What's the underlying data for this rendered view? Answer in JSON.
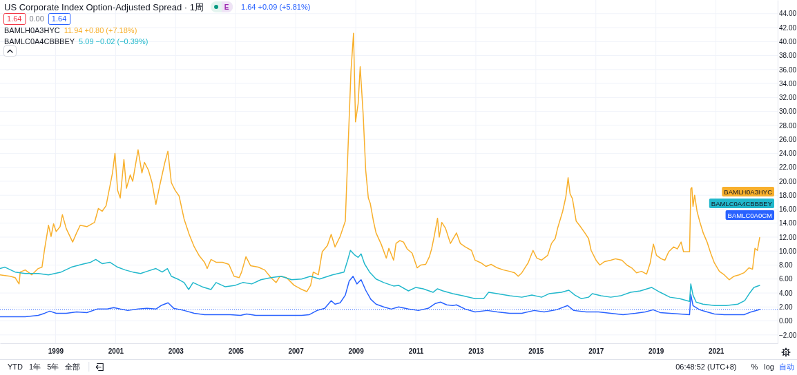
{
  "chart_data": {
    "type": "line",
    "title": "US Corporate Index Option-Adjusted Spread · 1周",
    "xlim": [
      "1997-02-24",
      "2023-01-22"
    ],
    "xticks": [
      "1999",
      "2001",
      "2003",
      "2005",
      "2007",
      "2009",
      "2011",
      "2013",
      "2015",
      "2017",
      "2019",
      "2021"
    ],
    "ylim": [
      -3.2,
      45.95
    ],
    "yticks": [
      {
        "value": -2,
        "label": "−2.00"
      },
      {
        "value": 0,
        "label": "0.00"
      },
      {
        "value": 2,
        "label": "2.00"
      },
      {
        "value": 4,
        "label": "4.00"
      },
      {
        "value": 6,
        "label": "6.00"
      },
      {
        "value": 8,
        "label": "8.00"
      },
      {
        "value": 10,
        "label": "10.00"
      },
      {
        "value": 12,
        "label": "12.00"
      },
      {
        "value": 14,
        "label": "14.00"
      },
      {
        "value": 16,
        "label": "16.00"
      },
      {
        "value": 18,
        "label": "18.00"
      },
      {
        "value": 20,
        "label": "20.00"
      },
      {
        "value": 22,
        "label": "22.00"
      },
      {
        "value": 24,
        "label": "24.00"
      },
      {
        "value": 26,
        "label": "26.00"
      },
      {
        "value": 28,
        "label": "28.00"
      },
      {
        "value": 30,
        "label": "30.00"
      },
      {
        "value": 32,
        "label": "32.00"
      },
      {
        "value": 34,
        "label": "34.00"
      },
      {
        "value": 36,
        "label": "36.00"
      },
      {
        "value": 38,
        "label": "38.00"
      },
      {
        "value": 40,
        "label": "40.00"
      },
      {
        "value": 42,
        "label": "42.00"
      },
      {
        "value": 44,
        "label": "44.00"
      }
    ],
    "grid": true,
    "legend": "right",
    "ref_lines": [
      {
        "axis": "y",
        "value": 1.64,
        "color": "#2962ff",
        "line_style": "dotted"
      }
    ],
    "series": [
      {
        "name": "BAMLC0A0CM",
        "color": "#2962ff",
        "x": [
          "1997-02-24",
          "1997-12-28",
          "1998-06-04",
          "1998-08-21",
          "1998-10-22",
          "1999-01-09",
          "1999-05-12",
          "1999-09-14",
          "2000-01-17",
          "2000-05-20",
          "2000-09-22",
          "2000-12-09",
          "2001-02-26",
          "2001-05-28",
          "2001-10-01",
          "2002-01-18",
          "2002-05-06",
          "2002-07-07",
          "2002-10-01",
          "2002-12-10",
          "2003-04-14",
          "2003-08-16",
          "2003-12-19",
          "2004-05-22",
          "2004-10-26",
          "2005-02-28",
          "2005-05-15",
          "2005-09-03",
          "2006-03-06",
          "2006-09-11",
          "2007-03-15",
          "2007-06-17",
          "2007-09-19",
          "2007-12-21",
          "2008-03-08",
          "2008-04-24",
          "2008-06-25",
          "2008-08-27",
          "2008-10-13",
          "2008-11-29",
          "2009-01-15",
          "2009-03-07",
          "2009-05-02",
          "2009-07-03",
          "2009-09-05",
          "2009-12-07",
          "2010-03-09",
          "2010-06-06",
          "2010-10-04",
          "2011-02-02",
          "2011-06-01",
          "2011-08-29",
          "2011-10-29",
          "2012-01-13",
          "2012-03-27",
          "2012-05-11",
          "2012-08-25",
          "2012-12-23",
          "2013-05-21",
          "2013-09-19",
          "2014-02-17",
          "2014-07-15",
          "2014-12-13",
          "2015-04-12",
          "2015-09-10",
          "2016-01-23",
          "2016-04-07",
          "2016-09-05",
          "2017-02-02",
          "2017-07-01",
          "2017-11-28",
          "2018-04-26",
          "2018-08-25",
          "2018-11-29",
          "2019-02-22",
          "2019-06-21",
          "2019-10-19",
          "2020-02-15",
          "2020-03-01",
          "2020-03-28",
          "2020-06-16",
          "2020-09-15",
          "2020-12-13",
          "2021-04-12",
          "2021-08-10",
          "2021-12-09",
          "2022-03-07",
          "2022-06-17"
        ],
        "values": [
          0.6,
          0.6,
          0.8,
          1.1,
          1.4,
          1.1,
          1.1,
          1.3,
          1.2,
          1.7,
          1.7,
          1.9,
          1.7,
          1.5,
          1.7,
          1.8,
          1.7,
          2.2,
          2.6,
          1.8,
          1.5,
          1.1,
          0.9,
          0.9,
          0.9,
          0.8,
          1.0,
          0.8,
          0.8,
          0.8,
          0.8,
          0.9,
          1.5,
          1.8,
          2.9,
          2.4,
          2.6,
          3.7,
          5.7,
          6.4,
          5.3,
          5.9,
          4.4,
          3.1,
          2.4,
          2.0,
          1.7,
          2.0,
          1.7,
          1.5,
          1.8,
          2.5,
          2.7,
          2.3,
          2.2,
          2.3,
          1.7,
          1.3,
          1.5,
          1.3,
          1.1,
          1.1,
          1.5,
          1.3,
          1.6,
          2.2,
          1.5,
          1.3,
          1.3,
          1.1,
          0.9,
          1.1,
          1.3,
          1.6,
          1.2,
          1.1,
          1.0,
          0.9,
          3.8,
          2.2,
          1.6,
          1.3,
          1.0,
          0.9,
          0.9,
          0.9,
          1.3,
          1.64
        ]
      },
      {
        "name": "BAMLH0A3HYC",
        "color": "#f8b02d",
        "x": [
          "1997-02-24",
          "1997-06-27",
          "1997-08-27",
          "1997-10-14",
          "1997-10-28",
          "1997-12-28",
          "1998-03-17",
          "1998-06-04",
          "1998-07-20",
          "1998-08-21",
          "1998-10-07",
          "1998-11-07",
          "1998-12-08",
          "1999-01-09",
          "1999-02-25",
          "1999-03-25",
          "1999-05-12",
          "1999-07-28",
          "1999-09-14",
          "1999-10-28",
          "2000-01-17",
          "2000-04-19",
          "2000-06-05",
          "2000-07-21",
          "2000-09-07",
          "2000-11-24",
          "2000-12-24",
          "2001-01-25",
          "2001-02-26",
          "2001-04-12",
          "2001-05-13",
          "2001-06-28",
          "2001-07-28",
          "2001-10-01",
          "2001-11-17",
          "2001-12-18",
          "2002-02-04",
          "2002-03-20",
          "2002-05-06",
          "2002-06-22",
          "2002-08-23",
          "2002-09-29",
          "2002-11-10",
          "2002-12-26",
          "2003-02-12",
          "2003-04-14",
          "2003-06-15",
          "2003-08-16",
          "2003-10-17",
          "2003-12-19",
          "2004-01-20",
          "2004-03-06",
          "2004-05-07",
          "2004-07-24",
          "2004-10-10",
          "2004-12-12",
          "2005-02-13",
          "2005-03-14",
          "2005-05-06",
          "2005-07-01",
          "2005-10-03",
          "2005-12-20",
          "2006-03-06",
          "2006-05-08",
          "2006-06-24",
          "2006-09-11",
          "2006-12-13",
          "2007-02-28",
          "2007-05-16",
          "2007-07-02",
          "2007-08-03",
          "2007-10-04",
          "2007-11-20",
          "2008-01-22",
          "2008-03-08",
          "2008-04-24",
          "2008-06-25",
          "2008-08-27",
          "2008-09-27",
          "2008-11-04",
          "2008-12-05",
          "2008-12-29",
          "2009-01-30",
          "2009-02-24",
          "2009-04-01",
          "2009-05-02",
          "2009-06-03",
          "2009-06-27",
          "2009-08-04",
          "2009-09-05",
          "2009-11-06",
          "2010-01-08",
          "2010-02-08",
          "2010-04-07",
          "2010-05-06",
          "2010-06-20",
          "2010-08-05",
          "2010-09-19",
          "2010-11-18",
          "2011-01-18",
          "2011-03-02",
          "2011-05-02",
          "2011-06-16",
          "2011-07-15",
          "2011-08-15",
          "2011-09-23",
          "2011-10-14",
          "2011-11-14",
          "2011-12-28",
          "2012-02-27",
          "2012-05-11",
          "2012-06-26",
          "2012-08-25",
          "2012-11-09",
          "2012-12-23",
          "2013-03-07",
          "2013-05-06",
          "2013-07-06",
          "2013-09-19",
          "2013-12-04",
          "2014-02-17",
          "2014-04-17",
          "2014-06-01",
          "2014-07-15",
          "2014-09-29",
          "2014-11-28",
          "2015-01-13",
          "2015-03-12",
          "2015-05-26",
          "2015-07-11",
          "2015-08-25",
          "2015-09-24",
          "2015-11-24",
          "2016-01-02",
          "2016-01-29",
          "2016-02-22",
          "2016-03-22",
          "2016-05-06",
          "2016-06-21",
          "2016-08-20",
          "2016-10-04",
          "2016-11-04",
          "2017-01-03",
          "2017-02-18",
          "2017-04-17",
          "2017-07-01",
          "2017-08-30",
          "2017-11-14",
          "2018-01-13",
          "2018-03-12",
          "2018-05-11",
          "2018-07-11",
          "2018-09-10",
          "2018-10-24",
          "2018-12-02",
          "2019-01-08",
          "2019-03-07",
          "2019-04-21",
          "2019-06-06",
          "2019-08-05",
          "2019-09-19",
          "2019-11-04",
          "2019-12-04",
          "2020-02-15",
          "2020-03-01",
          "2020-03-14",
          "2020-03-28",
          "2020-04-17",
          "2020-05-16",
          "2020-06-16",
          "2020-07-30",
          "2020-09-15",
          "2020-10-29",
          "2020-12-13",
          "2021-02-12",
          "2021-04-12",
          "2021-06-11",
          "2021-08-10",
          "2021-10-09",
          "2021-12-09",
          "2022-02-07",
          "2022-03-22",
          "2022-04-21",
          "2022-05-21",
          "2022-06-17"
        ],
        "values": [
          6.6,
          6.4,
          6.2,
          5.3,
          7.0,
          7.3,
          6.6,
          7.5,
          7.7,
          10.3,
          13.7,
          12.1,
          13.9,
          12.8,
          13.5,
          15.2,
          13.2,
          11.3,
          12.6,
          13.7,
          13.5,
          14.1,
          16.1,
          15.7,
          16.5,
          21.2,
          24.0,
          18.7,
          17.6,
          23.1,
          19.0,
          20.9,
          20.0,
          24.5,
          21.2,
          22.7,
          21.6,
          19.8,
          16.7,
          19.4,
          22.7,
          24.3,
          19.8,
          18.7,
          17.9,
          14.6,
          12.4,
          10.6,
          9.3,
          8.4,
          7.5,
          8.8,
          8.4,
          8.4,
          8.1,
          6.4,
          6.2,
          7.0,
          9.2,
          7.9,
          7.7,
          7.3,
          6.2,
          5.5,
          6.4,
          6.2,
          5.1,
          4.6,
          4.2,
          5.1,
          7.0,
          6.6,
          9.9,
          10.8,
          12.4,
          10.6,
          12.1,
          14.3,
          24.1,
          35.8,
          41.2,
          28.5,
          31.1,
          36.4,
          29.6,
          21.6,
          17.6,
          16.8,
          14.3,
          12.6,
          11.0,
          9.0,
          10.4,
          8.7,
          11.1,
          11.5,
          11.3,
          10.3,
          9.7,
          7.6,
          8.0,
          8.1,
          9.2,
          10.4,
          12.2,
          14.7,
          12.0,
          14.1,
          13.3,
          11.1,
          12.6,
          11.1,
          10.6,
          10.1,
          8.7,
          8.3,
          7.8,
          8.1,
          7.6,
          7.3,
          7.1,
          6.9,
          6.4,
          6.9,
          8.3,
          10.1,
          9.0,
          8.7,
          9.4,
          11.1,
          11.8,
          13.3,
          15.7,
          17.8,
          20.5,
          18.2,
          17.5,
          14.3,
          13.6,
          12.6,
          11.8,
          10.1,
          8.7,
          8.0,
          8.5,
          8.7,
          8.9,
          8.7,
          8.0,
          7.6,
          6.9,
          7.1,
          6.7,
          8.3,
          11.0,
          9.4,
          8.9,
          8.7,
          9.9,
          10.6,
          10.3,
          11.3,
          9.9,
          9.9,
          18.9,
          19.1,
          16.4,
          18.0,
          15.7,
          14.3,
          12.6,
          11.3,
          9.7,
          8.3,
          7.1,
          6.6,
          5.9,
          6.4,
          6.6,
          6.9,
          7.6,
          7.4,
          10.4,
          10.1,
          11.94
        ]
      },
      {
        "name": "BAMLC0A4CBBBEY",
        "color": "#22b8cc",
        "x": [
          "1997-02-24",
          "1997-04-25",
          "1997-08-27",
          "1997-12-28",
          "1998-06-04",
          "1998-10-07",
          "1999-03-10",
          "1999-07-13",
          "1999-11-16",
          "2000-03-03",
          "2000-05-04",
          "2000-07-21",
          "2000-10-23",
          "2001-01-25",
          "2001-04-27",
          "2001-07-28",
          "2001-11-01",
          "2002-01-18",
          "2002-05-06",
          "2002-07-22",
          "2002-09-23",
          "2002-11-10",
          "2003-02-12",
          "2003-04-14",
          "2003-06-09",
          "2003-08-01",
          "2003-11-18",
          "2004-03-06",
          "2004-05-07",
          "2004-08-24",
          "2004-12-27",
          "2005-03-29",
          "2005-07-16",
          "2005-11-04",
          "2006-03-06",
          "2006-07-10",
          "2006-11-12",
          "2007-03-15",
          "2007-07-02",
          "2007-10-19",
          "2008-03-23",
          "2008-08-11",
          "2008-09-27",
          "2008-10-28",
          "2008-12-14",
          "2009-01-30",
          "2009-03-07",
          "2009-04-17",
          "2009-06-18",
          "2009-09-05",
          "2009-12-07",
          "2010-04-07",
          "2010-06-06",
          "2010-10-04",
          "2011-01-03",
          "2011-04-02",
          "2011-07-30",
          "2011-09-23",
          "2011-11-28",
          "2012-03-27",
          "2012-07-25",
          "2012-12-23",
          "2013-04-07",
          "2013-06-06",
          "2013-09-19",
          "2014-02-17",
          "2014-07-15",
          "2014-11-14",
          "2015-03-12",
          "2015-06-11",
          "2015-11-09",
          "2016-02-07",
          "2016-04-21",
          "2016-07-06",
          "2016-10-04",
          "2016-11-19",
          "2017-03-03",
          "2017-07-01",
          "2017-10-29",
          "2018-02-27",
          "2018-06-26",
          "2018-11-09",
          "2019-02-22",
          "2019-06-21",
          "2019-10-19",
          "2020-02-15",
          "2020-03-01",
          "2020-03-28",
          "2020-05-05",
          "2020-07-27",
          "2020-12-17",
          "2021-05-05",
          "2021-09-24",
          "2021-12-17",
          "2022-02-10",
          "2022-04-08",
          "2022-06-17"
        ],
        "values": [
          7.5,
          7.7,
          7.0,
          6.8,
          6.8,
          6.6,
          7.0,
          7.7,
          8.1,
          8.4,
          8.8,
          8.2,
          8.4,
          7.7,
          7.3,
          7.0,
          6.8,
          7.1,
          7.5,
          7.0,
          7.5,
          6.4,
          5.9,
          5.5,
          4.5,
          5.5,
          4.9,
          4.5,
          5.5,
          4.9,
          5.1,
          5.5,
          5.3,
          5.9,
          6.2,
          6.4,
          5.9,
          6.0,
          6.4,
          6.0,
          6.6,
          7.0,
          8.8,
          10.1,
          9.5,
          9.1,
          9.6,
          8.2,
          7.0,
          6.0,
          5.5,
          5.0,
          5.1,
          4.3,
          4.8,
          4.6,
          4.1,
          4.6,
          4.3,
          3.9,
          3.6,
          3.2,
          3.2,
          4.1,
          3.9,
          3.6,
          3.4,
          3.7,
          3.4,
          3.9,
          4.1,
          4.4,
          3.7,
          3.2,
          3.4,
          3.9,
          3.6,
          3.4,
          3.6,
          4.1,
          4.3,
          4.8,
          4.1,
          3.4,
          3.2,
          2.8,
          5.3,
          3.7,
          2.7,
          2.4,
          2.2,
          2.2,
          2.4,
          2.9,
          3.9,
          4.8,
          5.09
        ]
      }
    ],
    "annotations": [
      "E",
      "1.64 +0.09 (+5.81%)",
      "1.64",
      "0.00",
      "1.64",
      "11.94 +0.80 (+7.18%)",
      "5.09 −0.02 (−0.39%)",
      "YTD",
      "1年",
      "5年",
      "全部",
      "06:48:52 (UTC+8)",
      "%",
      "log",
      "自动"
    ]
  }
}
